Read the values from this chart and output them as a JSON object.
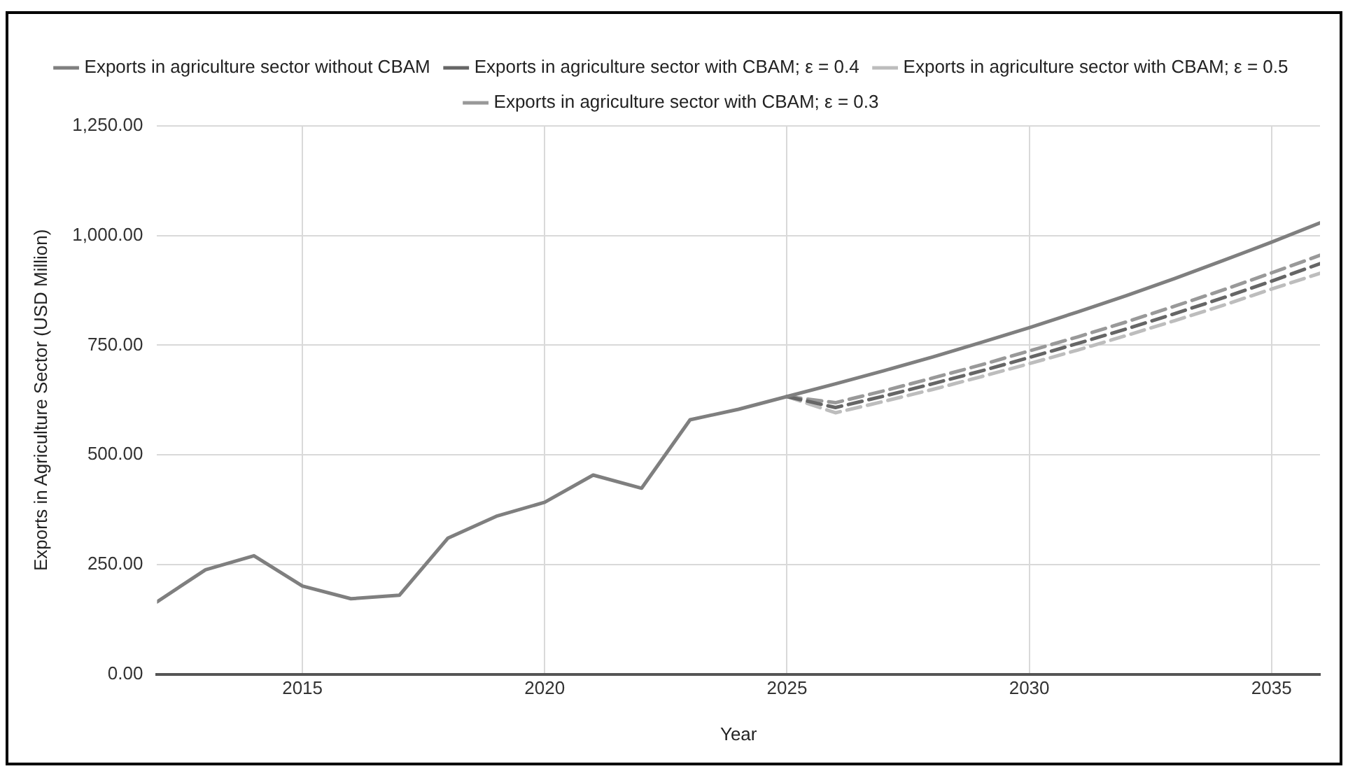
{
  "chart_data": {
    "type": "line",
    "xlabel": "Year",
    "ylabel": "Exports in Agriculture Sector (USD Million)",
    "x": [
      2012,
      2013,
      2014,
      2015,
      2016,
      2017,
      2018,
      2019,
      2020,
      2021,
      2022,
      2023,
      2024,
      2025,
      2026,
      2027,
      2028,
      2029,
      2030,
      2031,
      2032,
      2033,
      2034,
      2035,
      2036
    ],
    "series": [
      {
        "name": "Exports in agriculture sector without CBAM",
        "color": "#7f7f7f",
        "line_style": "solid",
        "values": [
          165,
          238,
          270,
          201,
          172,
          180,
          310,
          360,
          392,
          454,
          424,
          580,
          604,
          633,
          662,
          692,
          723,
          756,
          790,
          826,
          863,
          902,
          943,
          985,
          1029
        ]
      },
      {
        "name": "Exports in agriculture sector with CBAM; ε = 0.4",
        "color": "#666666",
        "line_style": "dashed",
        "values": [
          null,
          null,
          null,
          null,
          null,
          null,
          null,
          null,
          null,
          null,
          null,
          null,
          null,
          633,
          608,
          634,
          662,
          691,
          722,
          754,
          787,
          822,
          858,
          896,
          936
        ]
      },
      {
        "name": "Exports in agriculture sector with CBAM; ε = 0.5",
        "color": "#bdbdbd",
        "line_style": "dashed",
        "values": [
          null,
          null,
          null,
          null,
          null,
          null,
          null,
          null,
          null,
          null,
          null,
          null,
          null,
          633,
          596,
          622,
          649,
          678,
          708,
          739,
          772,
          806,
          841,
          878,
          914
        ]
      },
      {
        "name": "Exports in agriculture sector with CBAM; ε = 0.3",
        "color": "#999999",
        "line_style": "dashed",
        "values": [
          null,
          null,
          null,
          null,
          null,
          null,
          null,
          null,
          null,
          null,
          null,
          null,
          null,
          633,
          619,
          646,
          675,
          705,
          737,
          769,
          803,
          839,
          876,
          915,
          955
        ]
      }
    ],
    "xlim": [
      2012,
      2036
    ],
    "xticks": [
      2015,
      2020,
      2025,
      2030,
      2035
    ],
    "ylim": [
      0,
      1250
    ],
    "yticks": [
      {
        "value": 0,
        "label": "0.00"
      },
      {
        "value": 250,
        "label": "250.00"
      },
      {
        "value": 500,
        "label": "500.00"
      },
      {
        "value": 750,
        "label": "750.00"
      },
      {
        "value": 1000,
        "label": "1,000.00"
      },
      {
        "value": 1250,
        "label": "1,250.00"
      }
    ],
    "grid": true,
    "legend": "top",
    "marker": "none"
  }
}
